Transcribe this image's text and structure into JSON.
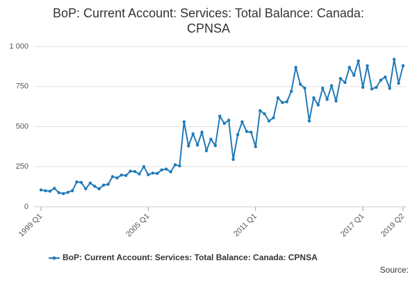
{
  "chart_data": {
    "type": "line",
    "title": "BoP: Current Account: Services: Total Balance: Canada: CPNSA",
    "categories": [
      "1999 Q1",
      null,
      null,
      null,
      null,
      null,
      null,
      null,
      null,
      null,
      null,
      null,
      null,
      null,
      null,
      null,
      null,
      null,
      null,
      null,
      null,
      null,
      null,
      null,
      "2005 Q1",
      null,
      null,
      null,
      null,
      null,
      null,
      null,
      null,
      null,
      null,
      null,
      null,
      null,
      null,
      null,
      null,
      null,
      null,
      null,
      null,
      null,
      null,
      null,
      "2011 Q1",
      null,
      null,
      null,
      null,
      null,
      null,
      null,
      null,
      null,
      null,
      null,
      null,
      null,
      null,
      null,
      null,
      null,
      null,
      null,
      null,
      null,
      null,
      null,
      "2017 Q1",
      null,
      null,
      null,
      null,
      null,
      null,
      null,
      null,
      "2019 Q2"
    ],
    "series": [
      {
        "name": "BoP: Current Account: Services: Total Balance: Canada: CPNSA",
        "color": "#1f7ab8",
        "values": [
          105,
          100,
          97,
          115,
          88,
          82,
          90,
          100,
          155,
          152,
          112,
          148,
          128,
          112,
          135,
          140,
          188,
          180,
          198,
          195,
          222,
          220,
          205,
          250,
          200,
          210,
          208,
          230,
          235,
          218,
          262,
          255,
          530,
          380,
          455,
          385,
          465,
          350,
          422,
          382,
          565,
          520,
          540,
          295,
          450,
          530,
          470,
          465,
          375,
          600,
          580,
          535,
          555,
          680,
          650,
          655,
          720,
          870,
          765,
          740,
          535,
          680,
          635,
          740,
          670,
          755,
          660,
          800,
          775,
          870,
          820,
          910,
          745,
          880,
          735,
          745,
          790,
          810,
          740,
          920,
          770,
          880
        ]
      }
    ],
    "ylim": [
      0,
      1000
    ],
    "yticks": [
      0,
      250,
      500,
      750,
      {
        "value": 1000,
        "label": "1 000"
      }
    ],
    "grid": true,
    "source": "Source:"
  }
}
